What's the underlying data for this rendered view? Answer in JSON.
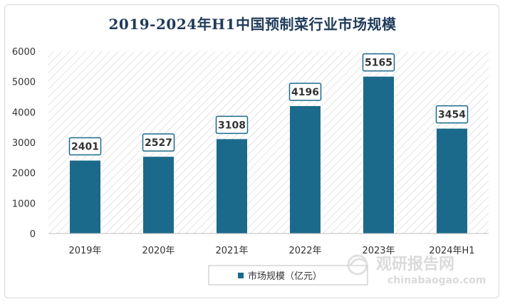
{
  "chart_data": {
    "type": "bar",
    "title": "2019-2024年H1中国预制菜行业市场规模",
    "categories": [
      "2019年",
      "2020年",
      "2021年",
      "2022年",
      "2023年",
      "2024年H1"
    ],
    "series": [
      {
        "name": "市场规模（亿元）",
        "values": [
          2401,
          2527,
          3108,
          4196,
          5165,
          3454
        ]
      }
    ],
    "ylim": [
      0,
      6000
    ],
    "yticks": [
      0,
      1000,
      2000,
      3000,
      4000,
      5000,
      6000
    ],
    "xlabel": "",
    "ylabel": "",
    "grid": false,
    "legend": "bottom-center",
    "bar_color": "#1b6a8c",
    "label_border_color": "#1b6a8c"
  },
  "watermark": {
    "brand": "观研报告网",
    "url": "chinabaogao.com"
  }
}
